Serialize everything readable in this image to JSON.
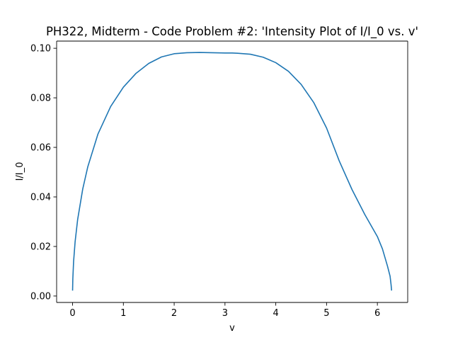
{
  "chart_data": {
    "type": "line",
    "title": "PH322, Midterm - Code Problem #2: 'Intensity Plot of I/I_0 vs. v'",
    "xlabel": "v",
    "ylabel": "I/I_0",
    "xlim": [
      -0.314,
      6.597
    ],
    "ylim": [
      -0.0026,
      0.1029
    ],
    "xticks": [
      0,
      1,
      2,
      3,
      4,
      5,
      6
    ],
    "xtick_labels": [
      "0",
      "1",
      "2",
      "3",
      "4",
      "5",
      "6"
    ],
    "yticks": [
      0.0,
      0.02,
      0.04,
      0.06,
      0.08,
      0.1
    ],
    "ytick_labels": [
      "0.00",
      "0.02",
      "0.04",
      "0.06",
      "0.08",
      "0.10"
    ],
    "grid": false,
    "legend": "none",
    "series": [
      {
        "color": "#1f77b4",
        "x": [
          0.0,
          0.005,
          0.02,
          0.05,
          0.1,
          0.2,
          0.3,
          0.5,
          0.75,
          1.0,
          1.25,
          1.5,
          1.75,
          2.0,
          2.25,
          2.5,
          2.75,
          3.0,
          3.1416,
          3.25,
          3.5,
          3.75,
          4.0,
          4.25,
          4.5,
          4.75,
          5.0,
          5.25,
          5.5,
          5.75,
          6.0,
          6.1,
          6.2,
          6.25,
          6.27,
          6.28
        ],
        "y": [
          0.0022,
          0.0069,
          0.0139,
          0.0219,
          0.0309,
          0.0432,
          0.0522,
          0.0654,
          0.0765,
          0.0843,
          0.0899,
          0.0939,
          0.0965,
          0.0978,
          0.0982,
          0.0983,
          0.0982,
          0.0981,
          0.0981,
          0.098,
          0.0976,
          0.0964,
          0.0942,
          0.0907,
          0.0854,
          0.078,
          0.0678,
          0.0545,
          0.043,
          0.033,
          0.024,
          0.019,
          0.012,
          0.008,
          0.0045,
          0.0022
        ]
      }
    ]
  }
}
